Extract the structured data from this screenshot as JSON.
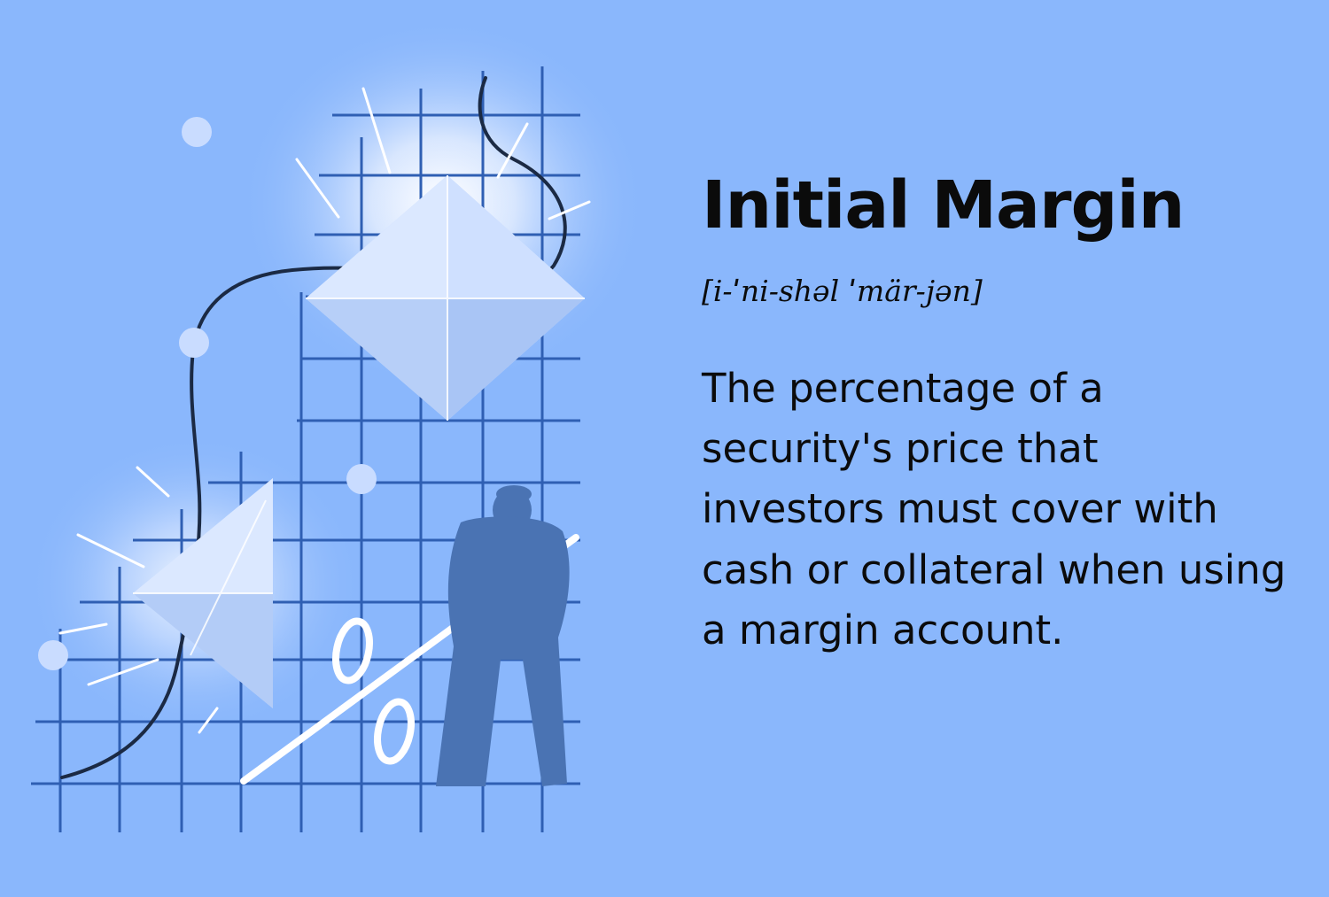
{
  "term": {
    "title": "Initial Margin",
    "pronunciation": "[i-ˈni-shəl ˈmär-jən]",
    "definition": "The percentage of a security's price that investors must cover with cash or collateral when using a margin account."
  },
  "illustration": {
    "percent_sign": "%",
    "colors": {
      "background": "#8ab7fc",
      "grid": "#2f5fb3",
      "crystal": "#dce8ff",
      "figure": "#4a73b3",
      "curve": "#1b2a44",
      "dots": "#c9dcff"
    }
  }
}
